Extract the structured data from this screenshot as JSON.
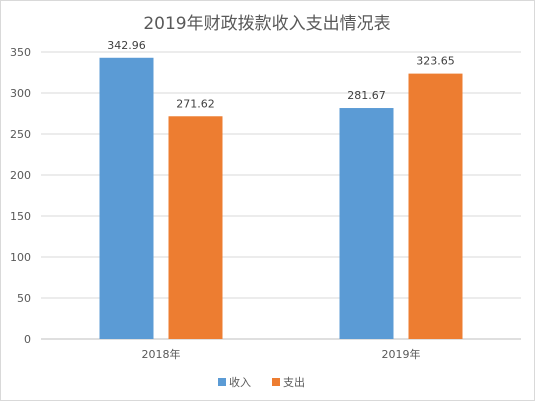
{
  "chart_data": {
    "type": "bar",
    "title": "2019年财政拨款收入支出情况表",
    "categories": [
      "2018年",
      "2019年"
    ],
    "series": [
      {
        "name": "收入",
        "values": [
          342.96,
          281.67
        ],
        "labels": [
          "342.96",
          "281.67"
        ],
        "color": "#5B9BD5"
      },
      {
        "name": "支出",
        "values": [
          271.62,
          323.65
        ],
        "labels": [
          "271.62",
          "323.65"
        ],
        "color": "#ED7D31"
      }
    ],
    "yticks": [
      "0",
      "50",
      "100",
      "150",
      "200",
      "250",
      "300",
      "350"
    ],
    "ylim": [
      0,
      350
    ],
    "grid": true,
    "legend_position": "bottom",
    "xlabel": "",
    "ylabel": ""
  }
}
